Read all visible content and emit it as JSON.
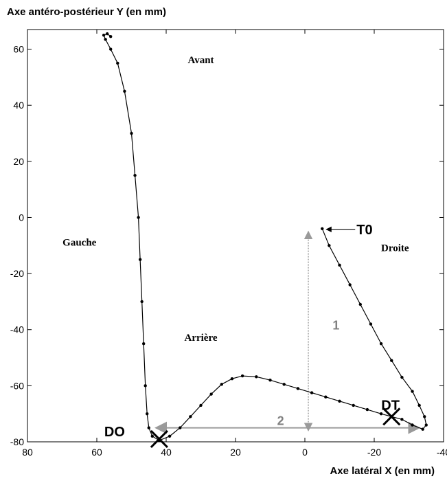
{
  "chart_data": {
    "type": "line",
    "ylabel": "Axe antéro-postérieur Y (en mm)",
    "xlabel": "Axe latéral X (en mm)",
    "xlim": [
      80,
      -40
    ],
    "ylim": [
      -80,
      67
    ],
    "x_reversed": true,
    "x_ticks": [
      80,
      60,
      40,
      20,
      0,
      -20,
      -40
    ],
    "x_tick_labels": [
      "80",
      "60",
      "40",
      "20",
      "0",
      "-20",
      "-40"
    ],
    "y_ticks": [
      60,
      40,
      20,
      0,
      -20,
      -40,
      -60,
      -80
    ],
    "y_tick_labels": [
      "60",
      "40",
      "20",
      "0",
      "-20",
      "-40",
      "-60",
      "-80"
    ],
    "grid": false,
    "colors": {
      "curve": "#000000",
      "arrows": "#9a9a9a"
    },
    "region_labels": [
      {
        "text": "Avant",
        "x": 30,
        "y": 55
      },
      {
        "text": "Gauche",
        "x": 65,
        "y": -10
      },
      {
        "text": "Droite",
        "x": -26,
        "y": -12
      },
      {
        "text": "Arrière",
        "x": 30,
        "y": -44
      }
    ],
    "series": [
      {
        "points": [
          [
            -5,
            -4
          ],
          [
            -7,
            -10
          ],
          [
            -10,
            -17
          ],
          [
            -13,
            -24
          ],
          [
            -16,
            -31
          ],
          [
            -19,
            -38
          ],
          [
            -22,
            -45
          ],
          [
            -25,
            -51
          ],
          [
            -28,
            -57
          ],
          [
            -31,
            -62
          ],
          [
            -33,
            -67
          ],
          [
            -34.5,
            -71
          ],
          [
            -35,
            -74
          ],
          [
            -34,
            -75.5
          ],
          [
            -31,
            -74
          ],
          [
            -28,
            -72
          ],
          [
            -25,
            -71
          ],
          [
            -22,
            -70
          ],
          [
            -18,
            -68.5
          ],
          [
            -14,
            -67
          ],
          [
            -10,
            -65.5
          ],
          [
            -6,
            -64
          ],
          [
            -2,
            -62.5
          ],
          [
            2,
            -61
          ],
          [
            6,
            -59.5
          ],
          [
            10,
            -58
          ],
          [
            14,
            -56.8
          ],
          [
            18,
            -56.5
          ],
          [
            21,
            -57.5
          ],
          [
            24,
            -59.5
          ],
          [
            27,
            -63
          ],
          [
            30,
            -67
          ],
          [
            33,
            -71
          ],
          [
            36,
            -75
          ],
          [
            39,
            -78
          ],
          [
            42,
            -79.5
          ],
          [
            44,
            -78
          ],
          [
            45,
            -75
          ],
          [
            45.5,
            -70
          ],
          [
            46,
            -60
          ],
          [
            46.5,
            -45
          ],
          [
            47,
            -30
          ],
          [
            47.5,
            -15
          ],
          [
            48,
            0
          ],
          [
            49,
            15
          ],
          [
            50,
            30
          ],
          [
            52,
            45
          ],
          [
            54,
            55
          ],
          [
            56,
            60
          ],
          [
            57.5,
            63.5
          ],
          [
            58,
            65
          ],
          [
            57,
            65.5
          ],
          [
            56,
            64.5
          ]
        ]
      }
    ],
    "markers": [
      {
        "label": "T0",
        "x": -5,
        "y": -4
      },
      {
        "label": "DT",
        "x": -25,
        "y": -71
      },
      {
        "label": "DO",
        "x": 42,
        "y": -79
      }
    ],
    "annotations": [
      {
        "label": "1",
        "x": -8,
        "y": -40
      },
      {
        "label": "2",
        "x": 8,
        "y": -74
      }
    ],
    "arrow_1": {
      "x": -1,
      "y_from": -76,
      "y_to": -5
    },
    "arrow_2": {
      "y": -75,
      "x_from": 43,
      "x_to": -33
    }
  }
}
